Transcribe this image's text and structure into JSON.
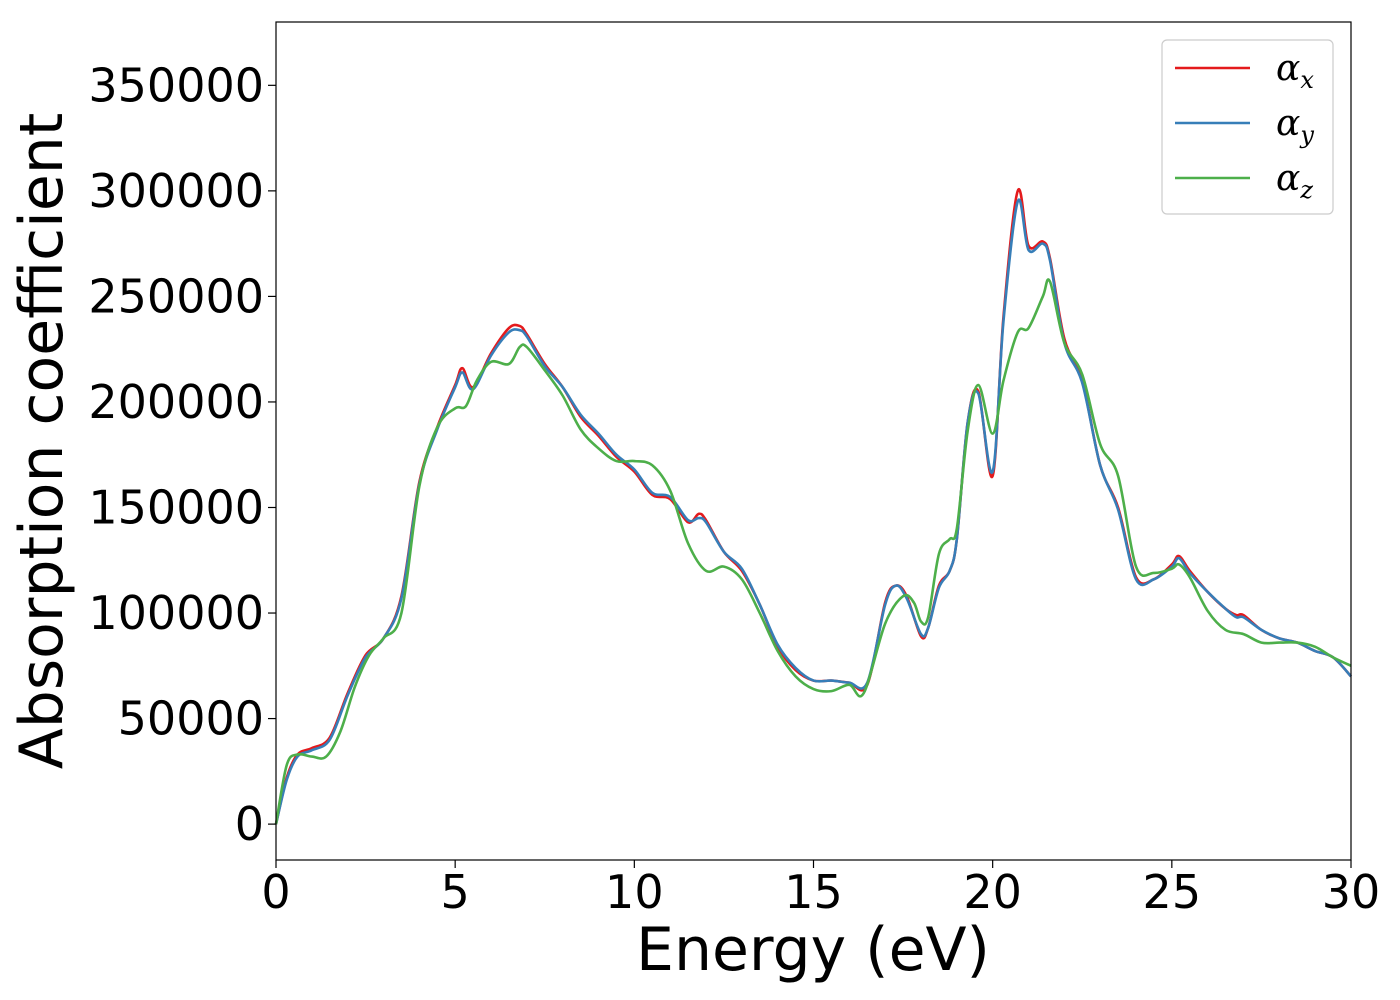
{
  "chart_data": {
    "type": "line",
    "title": "",
    "xlabel": "Energy (eV)",
    "ylabel": "Absorption coefficient",
    "xlim": [
      0,
      30
    ],
    "ylim": [
      -17000,
      380000
    ],
    "xticks": [
      0,
      5,
      10,
      15,
      20,
      25,
      30
    ],
    "yticks": [
      0,
      50000,
      100000,
      150000,
      200000,
      250000,
      300000,
      350000
    ],
    "xtick_labels": [
      "0",
      "5",
      "10",
      "15",
      "20",
      "25",
      "30"
    ],
    "ytick_labels": [
      "0",
      "50000",
      "100000",
      "150000",
      "200000",
      "250000",
      "300000",
      "350000"
    ],
    "grid": false,
    "legend_position": "top-right",
    "series": [
      {
        "name": "α",
        "subscript": "x",
        "color": "#e41a1c",
        "x": [
          0,
          0.3,
          0.6,
          1.0,
          1.5,
          2.0,
          2.5,
          3.0,
          3.5,
          4.0,
          4.5,
          5.0,
          5.2,
          5.5,
          6.0,
          6.5,
          6.8,
          7.0,
          7.5,
          8.0,
          8.5,
          9.0,
          9.5,
          10.0,
          10.5,
          11.0,
          11.5,
          11.8,
          12.0,
          12.5,
          13.0,
          13.5,
          14.0,
          14.5,
          15.0,
          15.5,
          16.0,
          16.5,
          17.0,
          17.3,
          17.6,
          18.0,
          18.2,
          18.5,
          18.8,
          19.0,
          19.3,
          19.6,
          20.0,
          20.3,
          20.7,
          21.0,
          21.4,
          21.6,
          22.0,
          22.5,
          23.0,
          23.5,
          24.0,
          24.5,
          25.0,
          25.2,
          25.5,
          26.0,
          26.5,
          26.8,
          27.0,
          27.5,
          28.0,
          28.5,
          29.0,
          29.5,
          30.0
        ],
        "values": [
          0,
          22000,
          33000,
          36000,
          41000,
          62000,
          80000,
          88000,
          108000,
          162000,
          188000,
          208000,
          216000,
          207000,
          223000,
          235000,
          236000,
          232000,
          218000,
          207000,
          193000,
          184000,
          174000,
          167000,
          156000,
          154000,
          143000,
          147000,
          144000,
          129000,
          120000,
          104000,
          84000,
          73000,
          68000,
          68000,
          67000,
          66000,
          105000,
          113000,
          108000,
          89000,
          93000,
          113000,
          120000,
          135000,
          190000,
          205000,
          165000,
          240000,
          300000,
          274000,
          276000,
          268000,
          230000,
          210000,
          170000,
          150000,
          117000,
          116000,
          123000,
          127000,
          120000,
          110000,
          102000,
          99000,
          99000,
          92000,
          88000,
          86000,
          82000,
          79000,
          70000
        ]
      },
      {
        "name": "α",
        "subscript": "y",
        "color": "#377eb8",
        "x": [
          0,
          0.3,
          0.6,
          1.0,
          1.5,
          2.0,
          2.5,
          3.0,
          3.5,
          4.0,
          4.5,
          5.0,
          5.2,
          5.5,
          6.0,
          6.5,
          6.8,
          7.0,
          7.5,
          8.0,
          8.5,
          9.0,
          9.5,
          10.0,
          10.5,
          11.0,
          11.5,
          11.8,
          12.0,
          12.5,
          13.0,
          13.5,
          14.0,
          14.5,
          15.0,
          15.5,
          16.0,
          16.5,
          17.0,
          17.3,
          17.6,
          18.0,
          18.2,
          18.5,
          18.8,
          19.0,
          19.3,
          19.6,
          20.0,
          20.3,
          20.7,
          21.0,
          21.4,
          21.6,
          22.0,
          22.5,
          23.0,
          23.5,
          24.0,
          24.5,
          25.0,
          25.2,
          25.5,
          26.0,
          26.5,
          26.8,
          27.0,
          27.5,
          28.0,
          28.5,
          29.0,
          29.5,
          30.0
        ],
        "values": [
          0,
          21000,
          32000,
          35000,
          40000,
          61000,
          79000,
          88000,
          107000,
          161000,
          187000,
          207000,
          214000,
          206000,
          222000,
          233000,
          234000,
          231000,
          217000,
          207000,
          194000,
          185000,
          175000,
          168000,
          157000,
          155000,
          144000,
          145000,
          143000,
          129000,
          121000,
          104000,
          85000,
          74000,
          68000,
          68000,
          67000,
          67000,
          104000,
          113000,
          107000,
          90000,
          93000,
          112000,
          120000,
          135000,
          190000,
          204000,
          167000,
          238000,
          295000,
          272000,
          275000,
          267000,
          228000,
          209000,
          170000,
          149000,
          116000,
          116000,
          122000,
          126000,
          119000,
          110000,
          102000,
          98000,
          98000,
          92000,
          88000,
          86000,
          82000,
          79000,
          70000
        ]
      },
      {
        "name": "α",
        "subscript": "z",
        "color": "#4daf4a",
        "x": [
          0,
          0.3,
          0.6,
          1.0,
          1.4,
          1.8,
          2.2,
          2.6,
          3.0,
          3.5,
          4.0,
          4.5,
          5.0,
          5.3,
          5.6,
          6.0,
          6.5,
          6.8,
          7.0,
          7.5,
          8.0,
          8.5,
          9.0,
          9.5,
          10.0,
          10.5,
          11.0,
          11.5,
          12.0,
          12.5,
          13.0,
          13.5,
          14.0,
          14.5,
          15.0,
          15.5,
          16.0,
          16.4,
          17.0,
          17.5,
          17.8,
          18.0,
          18.2,
          18.5,
          18.8,
          19.0,
          19.3,
          19.6,
          20.0,
          20.3,
          20.7,
          21.0,
          21.4,
          21.6,
          22.0,
          22.5,
          23.0,
          23.5,
          24.0,
          24.5,
          25.0,
          25.2,
          25.5,
          26.0,
          26.5,
          27.0,
          27.5,
          28.0,
          28.5,
          29.0,
          29.5,
          30.0
        ],
        "values": [
          0,
          28000,
          33000,
          32000,
          32000,
          44000,
          65000,
          80000,
          88000,
          100000,
          160000,
          188000,
          197000,
          198000,
          210000,
          219000,
          218000,
          226000,
          226000,
          215000,
          203000,
          187000,
          178000,
          172000,
          172000,
          170000,
          158000,
          133000,
          120000,
          122000,
          116000,
          100000,
          82000,
          70000,
          64000,
          63000,
          66000,
          62000,
          95000,
          108000,
          105000,
          96000,
          98000,
          128000,
          135000,
          140000,
          186000,
          208000,
          185000,
          210000,
          233000,
          235000,
          250000,
          257000,
          228000,
          213000,
          180000,
          165000,
          122000,
          119000,
          121000,
          123000,
          117000,
          101000,
          92000,
          90000,
          86000,
          86000,
          86000,
          84000,
          79000,
          75000
        ]
      }
    ]
  }
}
